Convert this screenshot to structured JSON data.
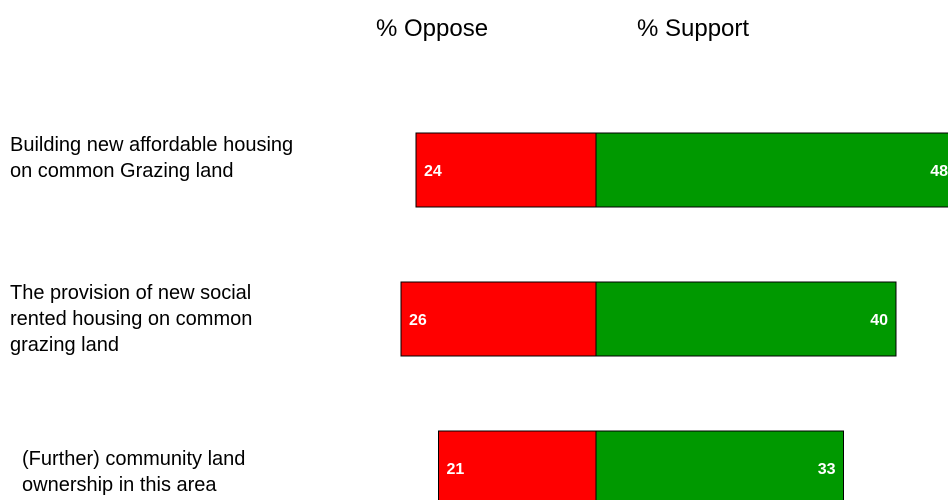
{
  "chart_data": {
    "type": "bar",
    "orientation": "horizontal",
    "stacked": "diverging",
    "title": "",
    "xlabel": "",
    "ylabel": "",
    "headers": {
      "oppose": "% Oppose",
      "support": "% Support"
    },
    "categories": [
      "Building new affordable housing on common Grazing land",
      "The provision of new social rented housing on common grazing land",
      "(Further) community land ownership in this area"
    ],
    "series": [
      {
        "name": "% Oppose",
        "color": "#ff0000",
        "values": [
          24,
          26,
          21
        ]
      },
      {
        "name": "% Support",
        "color": "#009900",
        "values": [
          48,
          40,
          33
        ]
      }
    ],
    "grid": false
  }
}
